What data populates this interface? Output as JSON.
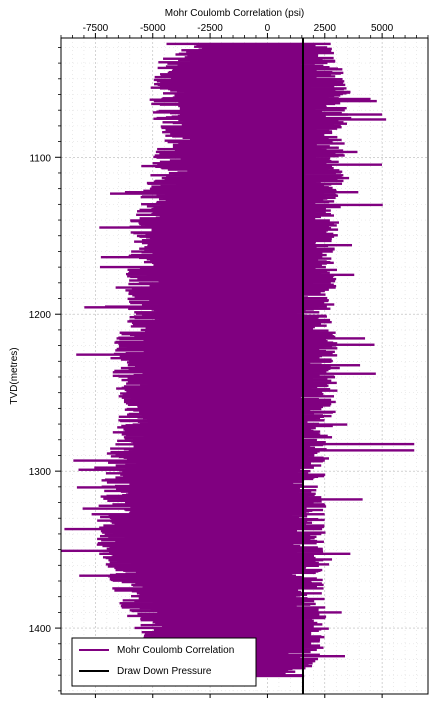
{
  "chart_data": {
    "type": "bar",
    "orientation": "horizontal",
    "x_title": "Mohr Coulomb Correlation (psi)",
    "y_title": "TVD(metres)",
    "x_ticks": [
      -7500,
      -5000,
      -2500,
      0,
      2500,
      5000
    ],
    "x_tick_labels": [
      "-7500",
      "-5000",
      "-2500",
      "0",
      "2500",
      "5000"
    ],
    "y_ticks": [
      1100,
      1200,
      1300,
      1400
    ],
    "y_tick_labels": [
      "1100",
      "1200",
      "1300",
      "1400"
    ],
    "xlim": [
      -9000,
      7000
    ],
    "ylim": [
      1024,
      1442
    ],
    "x_axis_position": "top",
    "y_axis_inverted": true,
    "grid": true,
    "legend_position": "bottom-left",
    "colors": {
      "correlation": "#800080",
      "draw_down": "#000000"
    },
    "draw_down_pressure_psi": 1550,
    "series": [
      {
        "name": "Mohr Coulomb Correlation",
        "profile": {
          "depth": [
            1027,
            1040,
            1060,
            1090,
            1110,
            1140,
            1170,
            1200,
            1230,
            1260,
            1290,
            1320,
            1350,
            1380,
            1410,
            1430
          ],
          "left_psi": [
            -3500,
            -3900,
            -4300,
            -4000,
            -4200,
            -5100,
            -5200,
            -5500,
            -6000,
            -5500,
            -6300,
            -6500,
            -6600,
            -5700,
            -4500,
            -4300
          ],
          "right_psi": [
            2000,
            2300,
            2800,
            2500,
            2500,
            2300,
            2200,
            2000,
            2300,
            2100,
            1800,
            1700,
            1600,
            1700,
            1600,
            1000
          ]
        },
        "spikes": [
          {
            "depth": 1072,
            "x_psi": 5000
          },
          {
            "depth": 1282,
            "x_psi": 6400
          },
          {
            "depth": 1286,
            "x_psi": 6400
          },
          {
            "depth": 1288,
            "x_psi": -7000
          },
          {
            "depth": 1350,
            "x_psi": -9000
          },
          {
            "depth": 1052,
            "x_psi": 3300
          },
          {
            "depth": 1245,
            "x_psi": 2600
          }
        ]
      },
      {
        "name": "Draw Down Pressure",
        "x_psi": 1550
      }
    ]
  }
}
